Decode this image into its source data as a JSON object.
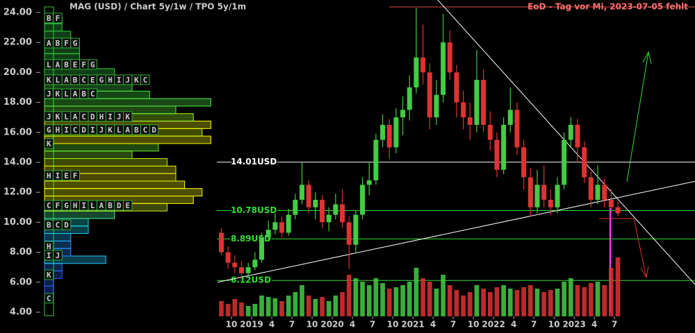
{
  "header": {
    "title": "MAG (USD) /  Chart 5y/1w / TPO 5y/1m",
    "notice": "EoD - Tag vor Mi, 2023-07-05 fehlt"
  },
  "chart_data": {
    "type": "candlestick",
    "x": [
      "2018-08",
      "2018-09",
      "2018-10",
      "2018-11",
      "2018-12",
      "2019-01",
      "2019-02",
      "2019-03",
      "2019-04",
      "2019-05",
      "2019-06",
      "2019-07",
      "2019-08",
      "2019-09",
      "2019-10",
      "2019-11",
      "2019-12",
      "2020-01",
      "2020-02",
      "2020-03",
      "2020-04",
      "2020-05",
      "2020-06",
      "2020-07",
      "2020-08",
      "2020-09",
      "2020-10",
      "2020-11",
      "2020-12",
      "2021-01",
      "2021-02",
      "2021-03",
      "2021-04",
      "2021-05",
      "2021-06",
      "2021-07",
      "2021-08",
      "2021-09",
      "2021-10",
      "2021-11",
      "2021-12",
      "2022-01",
      "2022-02",
      "2022-03",
      "2022-04",
      "2022-05",
      "2022-06",
      "2022-07",
      "2022-08",
      "2022-09",
      "2022-10",
      "2022-11",
      "2022-12",
      "2023-01",
      "2023-02",
      "2023-03",
      "2023-04",
      "2023-05",
      "2023-06",
      "2023-07"
    ],
    "open": [
      9.3,
      8.0,
      7.3,
      7.0,
      6.6,
      7.0,
      7.5,
      9.0,
      9.5,
      10.0,
      9.3,
      10.5,
      11.5,
      12.5,
      11.0,
      11.5,
      10.0,
      10.5,
      11.2,
      10.0,
      8.5,
      10.5,
      12.5,
      12.8,
      15.5,
      16.5,
      15.0,
      17.0,
      17.5,
      19.0,
      21.0,
      20.0,
      17.0,
      18.5,
      22.0,
      20.0,
      18.0,
      17.0,
      16.5,
      19.5,
      16.5,
      15.5,
      13.5,
      16.5,
      17.5,
      15.0,
      13.0,
      11.0,
      12.5,
      11.5,
      11.0,
      12.5,
      15.5,
      16.5,
      15.0,
      13.0,
      11.5,
      12.5,
      11.5,
      11.0
    ],
    "high": [
      9.6,
      8.4,
      7.8,
      7.4,
      7.3,
      8.0,
      9.3,
      10.1,
      10.6,
      10.4,
      10.9,
      11.9,
      14.0,
      12.8,
      12.0,
      11.8,
      11.0,
      11.9,
      12.2,
      10.4,
      10.8,
      13.0,
      14.0,
      15.9,
      17.2,
      16.9,
      17.6,
      18.4,
      19.8,
      24.3,
      23.2,
      20.6,
      19.5,
      23.9,
      22.8,
      20.5,
      18.8,
      18.0,
      21.5,
      20.2,
      17.4,
      16.0,
      17.0,
      19.0,
      18.0,
      15.5,
      13.6,
      13.5,
      13.8,
      12.2,
      13.0,
      16.0,
      17.0,
      16.9,
      15.4,
      13.4,
      13.8,
      12.9,
      12.2,
      11.4
    ],
    "low": [
      7.8,
      6.9,
      6.6,
      6.2,
      6.3,
      6.8,
      7.3,
      8.8,
      9.2,
      9.0,
      9.1,
      10.2,
      11.2,
      10.6,
      10.2,
      9.6,
      9.4,
      10.2,
      9.6,
      6.9,
      8.0,
      10.2,
      11.8,
      12.5,
      15.0,
      14.2,
      14.6,
      15.8,
      16.8,
      18.6,
      19.2,
      16.2,
      16.5,
      18.0,
      19.5,
      17.0,
      16.2,
      15.5,
      16.0,
      16.0,
      14.8,
      13.0,
      13.2,
      16.0,
      14.5,
      12.2,
      10.4,
      10.6,
      11.0,
      10.5,
      10.6,
      12.2,
      15.0,
      14.0,
      12.6,
      11.0,
      11.2,
      11.0,
      10.6,
      10.4
    ],
    "close": [
      8.0,
      7.3,
      7.0,
      6.6,
      7.0,
      7.5,
      9.0,
      9.5,
      10.0,
      9.3,
      10.5,
      11.5,
      12.5,
      11.0,
      11.5,
      10.0,
      10.5,
      11.2,
      10.0,
      8.5,
      10.5,
      12.5,
      12.8,
      15.5,
      16.5,
      15.0,
      17.0,
      17.5,
      19.0,
      21.0,
      20.0,
      17.0,
      18.5,
      22.0,
      20.0,
      18.0,
      17.0,
      16.5,
      19.5,
      16.5,
      15.5,
      13.5,
      16.5,
      17.5,
      15.0,
      13.0,
      11.0,
      12.5,
      11.5,
      11.0,
      12.5,
      15.5,
      16.5,
      15.0,
      13.0,
      11.5,
      12.5,
      11.5,
      11.0,
      10.6
    ],
    "volume": [
      22,
      18,
      25,
      20,
      15,
      18,
      30,
      28,
      26,
      22,
      30,
      35,
      45,
      30,
      25,
      28,
      22,
      30,
      35,
      60,
      55,
      50,
      45,
      55,
      48,
      40,
      42,
      45,
      50,
      70,
      55,
      50,
      40,
      60,
      45,
      38,
      30,
      35,
      45,
      40,
      35,
      42,
      45,
      40,
      38,
      42,
      45,
      40,
      35,
      38,
      40,
      50,
      55,
      45,
      42,
      48,
      50,
      45,
      70,
      85
    ],
    "volume_lim": [
      0,
      100
    ],
    "up_color": "#44cc44",
    "down_color": "#dd3333",
    "ylim": [
      4,
      24.83
    ],
    "yticks": [
      {
        "value": 4,
        "label": "4.00"
      },
      {
        "value": 6,
        "label": "6.00"
      },
      {
        "value": 8,
        "label": "8.00"
      },
      {
        "value": 10,
        "label": "10.00"
      },
      {
        "value": 12,
        "label": "12.00"
      },
      {
        "value": 14,
        "label": "14.00"
      },
      {
        "value": 16,
        "label": "16.00"
      },
      {
        "value": 18,
        "label": "18.00"
      },
      {
        "value": 20,
        "label": "20.00"
      },
      {
        "value": 22,
        "label": "22.00"
      },
      {
        "value": 24,
        "label": "24.00"
      }
    ],
    "xticks": [
      {
        "value": "2018-10",
        "label": "10"
      },
      {
        "value": "2019-01",
        "label": "2019"
      },
      {
        "value": "2019-04",
        "label": "4"
      },
      {
        "value": "2019-07",
        "label": "7"
      },
      {
        "value": "2019-10",
        "label": "10"
      },
      {
        "value": "2020-01",
        "label": "2020"
      },
      {
        "value": "2020-04",
        "label": "4"
      },
      {
        "value": "2020-07",
        "label": "7"
      },
      {
        "value": "2020-10",
        "label": "10"
      },
      {
        "value": "2021-01",
        "label": "2021"
      },
      {
        "value": "2021-04",
        "label": "4"
      },
      {
        "value": "2021-07",
        "label": "7"
      },
      {
        "value": "2021-10",
        "label": "10"
      },
      {
        "value": "2022-01",
        "label": "2022"
      },
      {
        "value": "2022-04",
        "label": "4"
      },
      {
        "value": "2022-07",
        "label": "7"
      },
      {
        "value": "2022-10",
        "label": "10"
      },
      {
        "value": "2023-01",
        "label": "2023"
      },
      {
        "value": "2023-04",
        "label": "4"
      },
      {
        "value": "2023-07",
        "label": "7"
      }
    ],
    "levels": [
      {
        "value": 14.01,
        "label": "14.01USD",
        "color": "#ffffff"
      },
      {
        "value": 10.78,
        "label": "10.78USD",
        "color": "#33dd33"
      },
      {
        "value": 8.89,
        "label": "8.89USD",
        "color": "#33dd33"
      },
      {
        "value": 6.12,
        "label": "6.12USD",
        "color": "#33dd33"
      }
    ],
    "trendlines": [
      {
        "x": [
          32.71,
          70.98
        ],
        "y": [
          24.83,
          5.85
        ],
        "color": "#ffffff"
      },
      {
        "x": [
          -0.07,
          70.98
        ],
        "y": [
          6.0,
          12.73
        ],
        "color": "#ffffff"
      }
    ],
    "tpo": {
      "levels": [
        5.0,
        5.5,
        6.0,
        6.5,
        7.0,
        7.5,
        8.0,
        8.5,
        9.0,
        9.5,
        10.0,
        10.5,
        11.0,
        11.5,
        12.0,
        12.5,
        13.0,
        13.5,
        14.0,
        14.5,
        15.0,
        15.5,
        16.0,
        16.5,
        17.0,
        17.5,
        18.0,
        18.5,
        19.0,
        19.5,
        20.0,
        20.5,
        21.0,
        21.5,
        22.0,
        22.5,
        23.0,
        23.5
      ],
      "counts": [
        1,
        1,
        1,
        2,
        2,
        7,
        3,
        3,
        3,
        5,
        5,
        8,
        14,
        17,
        18,
        16,
        15,
        15,
        14,
        10,
        13,
        19,
        18,
        19,
        17,
        15,
        19,
        12,
        10,
        10,
        8,
        6,
        4,
        4,
        4,
        3,
        2,
        2
      ],
      "colors": [
        "#2a5cff",
        "#2a5cff",
        "#2a5cff",
        "#2a5cff",
        "#2a7cff",
        "#22ccff",
        "#2a8cff",
        "#2a9cff",
        "#22aaff",
        "#22ccee",
        "#22dddd",
        "#44ee99",
        "#ccee22",
        "#ffff00",
        "#ffff00",
        "#ffff00",
        "#eeee00",
        "#eeee00",
        "#ccee00",
        "#88ee22",
        "#66ee33",
        "#ffff00",
        "#ccff00",
        "#ffff00",
        "#aaff22",
        "#66ee33",
        "#55ee44",
        "#44ee44",
        "#44dd44",
        "#44dd44",
        "#33cc44",
        "#33cc44",
        "#33cc44",
        "#33cc44",
        "#33cc44",
        "#33cc44",
        "#33cc44",
        "#33cc44"
      ],
      "rows": [
        {
          "price": 23.63,
          "letters": "BF"
        },
        {
          "price": 21.96,
          "letters": "ABFG"
        },
        {
          "price": 20.53,
          "letters": "LABEFG"
        },
        {
          "price": 19.51,
          "letters": "KLABCEGHIJKC"
        },
        {
          "price": 18.58,
          "letters": "JKLABC"
        },
        {
          "price": 17.06,
          "letters": "JKLACDHIJK"
        },
        {
          "price": 16.18,
          "letters": "GHICDIJKLABCD"
        },
        {
          "price": 15.25,
          "letters": "K"
        },
        {
          "price": 13.12,
          "letters": "HIEF"
        },
        {
          "price": 11.13,
          "letters": "CFGHILABDE"
        },
        {
          "price": 9.83,
          "letters": "BCD"
        },
        {
          "price": 8.4,
          "letters": "H"
        },
        {
          "price": 7.8,
          "letters": "IJ"
        },
        {
          "price": 6.5,
          "letters": "K"
        },
        {
          "price": 4.93,
          "letters": "C"
        }
      ]
    }
  }
}
